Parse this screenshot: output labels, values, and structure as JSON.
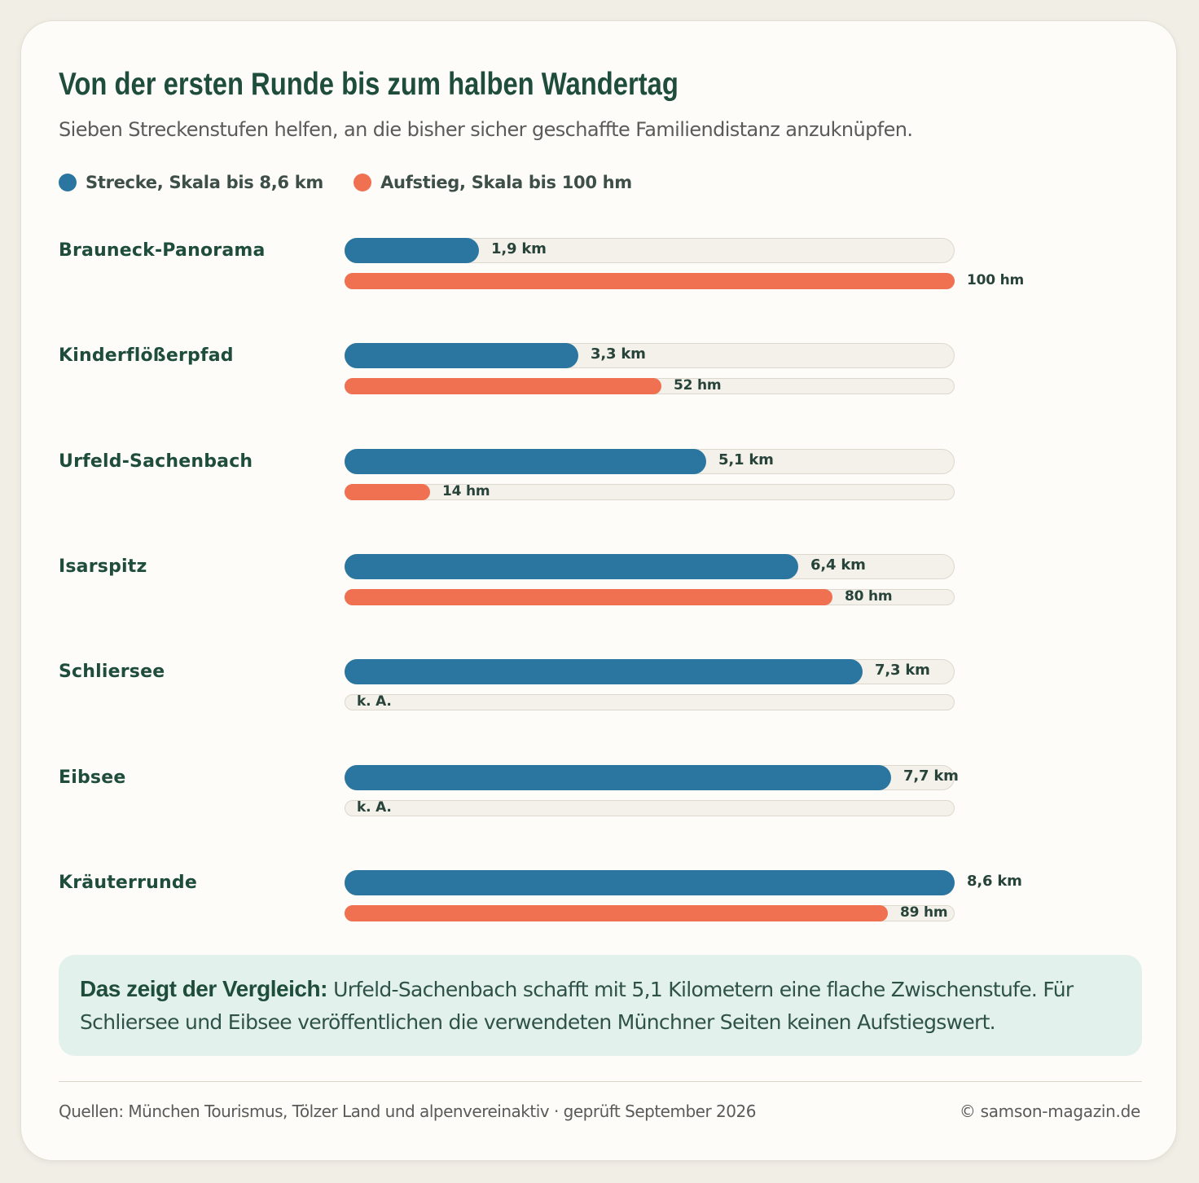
{
  "header": {
    "title": "Von der ersten Runde bis zum halben Wandertag",
    "subtitle": "Sieben Streckenstufen helfen, an die bisher sicher geschaffte Familiendistanz anzuknüpfen."
  },
  "legend": [
    {
      "label": "Strecke, Skala bis 8,6 km",
      "color": "#2b76a0"
    },
    {
      "label": "Aufstieg, Skala bis 100 hm",
      "color": "#ef7152"
    }
  ],
  "chart_data": {
    "type": "bar",
    "orientation": "horizontal",
    "categories": [
      "Brauneck-Panorama",
      "Kinderflößerpfad",
      "Urfeld-Sachenbach",
      "Isarspitz",
      "Schliersee",
      "Eibsee",
      "Kräuterrunde"
    ],
    "series": [
      {
        "name": "Strecke, Skala bis 8,6 km",
        "color": "#2b76a0",
        "unit": "km",
        "max": 8.6,
        "values": [
          1.9,
          3.3,
          5.1,
          6.4,
          7.3,
          7.7,
          8.6
        ],
        "labels": [
          "1,9 km",
          "3,3 km",
          "5,1 km",
          "6,4 km",
          "7,3 km",
          "7,7 km",
          "8,6 km"
        ]
      },
      {
        "name": "Aufstieg, Skala bis 100 hm",
        "color": "#ef7152",
        "unit": "hm",
        "max": 100,
        "values": [
          100,
          52,
          14,
          80,
          null,
          null,
          89
        ],
        "labels": [
          "100 hm",
          "52 hm",
          "14 hm",
          "80 hm",
          "k. A.",
          "k. A.",
          "89 hm"
        ]
      }
    ],
    "grid": false,
    "legend_position": "top-left"
  },
  "callout": {
    "lead": "Das zeigt der Vergleich:",
    "text": "Urfeld-Sachenbach schafft mit 5,1 Kilometern eine flache Zwischenstufe. Für Schliersee und Eibsee veröffentlichen die verwendeten Münchner Seiten keinen Aufstiegswert."
  },
  "footer": {
    "source": "Quellen: München Tourismus, Tölzer Land und alpenvereinaktiv · geprüft September 2026",
    "copyright": "© samson-magazin.de"
  }
}
